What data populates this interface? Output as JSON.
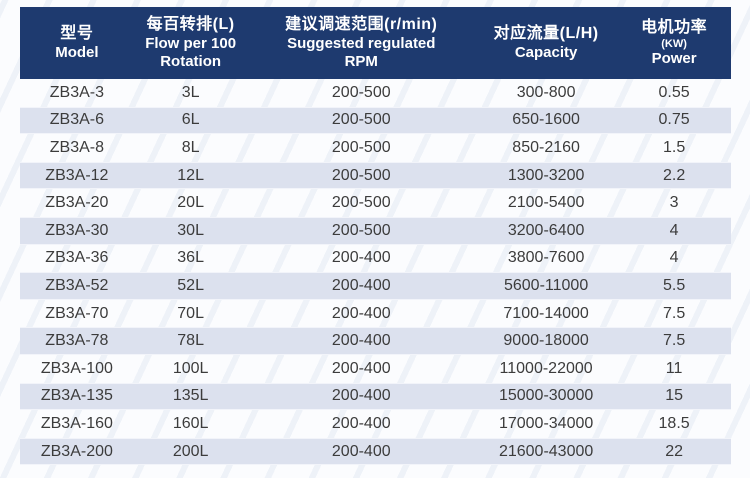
{
  "colors": {
    "header_bg": "#1e3a6f",
    "header_text": "#ffffff",
    "stripe_bg": "#dce1ee",
    "body_text": "#3c3c3c"
  },
  "table": {
    "columns": [
      {
        "id": "model",
        "zh": "型号",
        "en1": "Model",
        "en2": ""
      },
      {
        "id": "flow",
        "zh": "每百转排(L)",
        "en1": "Flow per 100",
        "en2": "Rotation"
      },
      {
        "id": "rpm",
        "zh": "建议调速范围(r/min)",
        "en1": "Suggested regulated",
        "en2": "RPM"
      },
      {
        "id": "capacity",
        "zh": "对应流量(L/H)",
        "en1": "Capacity",
        "en2": ""
      },
      {
        "id": "power",
        "zh": "电机功率",
        "kw": "(KW)",
        "en1": "Power",
        "en2": ""
      }
    ],
    "rows": [
      [
        "ZB3A-3",
        "3L",
        "200-500",
        "300-800",
        "0.55"
      ],
      [
        "ZB3A-6",
        "6L",
        "200-500",
        "650-1600",
        "0.75"
      ],
      [
        "ZB3A-8",
        "8L",
        "200-500",
        "850-2160",
        "1.5"
      ],
      [
        "ZB3A-12",
        "12L",
        "200-500",
        "1300-3200",
        "2.2"
      ],
      [
        "ZB3A-20",
        "20L",
        "200-500",
        "2100-5400",
        "3"
      ],
      [
        "ZB3A-30",
        "30L",
        "200-500",
        "3200-6400",
        "4"
      ],
      [
        "ZB3A-36",
        "36L",
        "200-400",
        "3800-7600",
        "4"
      ],
      [
        "ZB3A-52",
        "52L",
        "200-400",
        "5600-11000",
        "5.5"
      ],
      [
        "ZB3A-70",
        "70L",
        "200-400",
        "7100-14000",
        "7.5"
      ],
      [
        "ZB3A-78",
        "78L",
        "200-400",
        "9000-18000",
        "7.5"
      ],
      [
        "ZB3A-100",
        "100L",
        "200-400",
        "11000-22000",
        "11"
      ],
      [
        "ZB3A-135",
        "135L",
        "200-400",
        "15000-30000",
        "15"
      ],
      [
        "ZB3A-160",
        "160L",
        "200-400",
        "17000-34000",
        "18.5"
      ],
      [
        "ZB3A-200",
        "200L",
        "200-400",
        "21600-43000",
        "22"
      ]
    ]
  }
}
